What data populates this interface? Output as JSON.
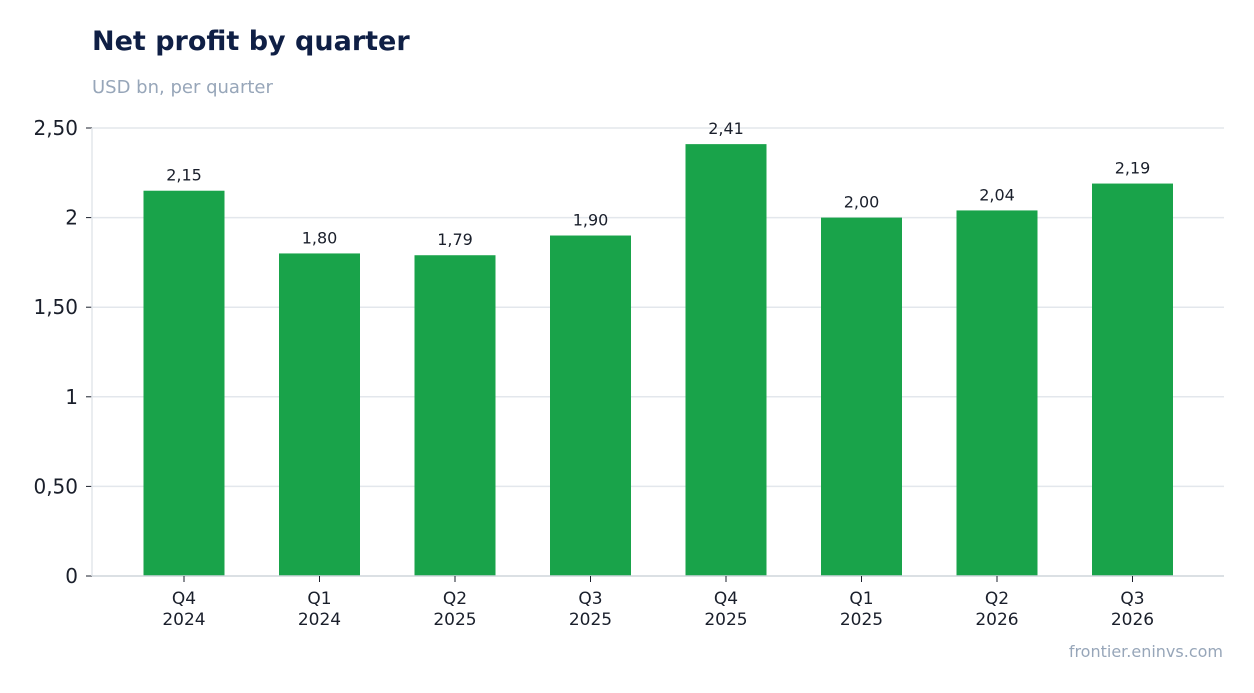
{
  "header": {
    "title": "Net profit by quarter",
    "subtitle": "USD bn, per quarter"
  },
  "footer": {
    "source": "frontier.eninvs.com"
  },
  "colors": {
    "bar": "#19a34a",
    "title": "#0f1f45",
    "muted": "#97a6b9",
    "grid": "#e3e7ec",
    "axis": "#cfd5dc",
    "text": "#1a1f2b"
  },
  "chart_data": {
    "type": "bar",
    "title": "Net profit by quarter",
    "subtitle": "USD bn, per quarter",
    "categories": [
      [
        "Q4",
        "2024"
      ],
      [
        "Q1",
        "2024"
      ],
      [
        "Q2",
        "2025"
      ],
      [
        "Q3",
        "2025"
      ],
      [
        "Q4",
        "2025"
      ],
      [
        "Q1",
        "2025"
      ],
      [
        "Q2",
        "2026"
      ],
      [
        "Q3",
        "2026"
      ]
    ],
    "values": [
      2.15,
      1.8,
      1.79,
      1.9,
      2.41,
      2.0,
      2.04,
      2.19
    ],
    "value_labels": [
      "2,15",
      "1,80",
      "1,79",
      "1,90",
      "2,41",
      "2,00",
      "2,04",
      "2,19"
    ],
    "ylim": [
      0,
      2.5
    ],
    "yticks": [
      0,
      0.5,
      1,
      1.5,
      2,
      2.5
    ],
    "ytick_labels": [
      "0",
      "0,50",
      "1",
      "1,50",
      "2",
      "2,50"
    ],
    "xlabel": "",
    "ylabel": "",
    "grid": true,
    "legend": "none"
  }
}
